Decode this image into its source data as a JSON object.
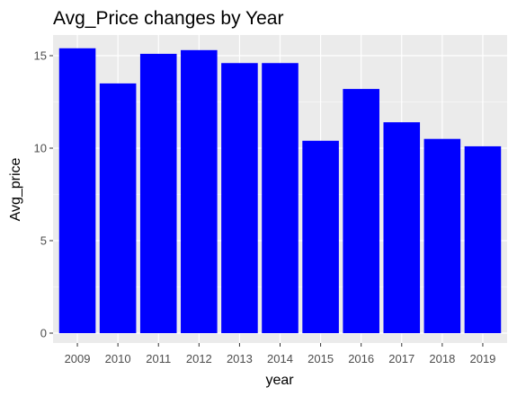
{
  "chart_data": {
    "type": "bar",
    "title": "Avg_Price changes by Year",
    "xlabel": "year",
    "ylabel": "Avg_price",
    "categories": [
      "2009",
      "2010",
      "2011",
      "2012",
      "2013",
      "2014",
      "2015",
      "2016",
      "2017",
      "2018",
      "2019"
    ],
    "values": [
      15.4,
      13.5,
      15.1,
      15.3,
      14.6,
      14.6,
      10.4,
      13.2,
      11.4,
      10.5,
      10.1
    ],
    "ylim": [
      0,
      15.75
    ],
    "yticks": [
      0,
      5,
      10,
      15
    ],
    "bar_color": "#0000ff",
    "panel_color": "#ebebeb",
    "grid": true,
    "legend": "none"
  }
}
